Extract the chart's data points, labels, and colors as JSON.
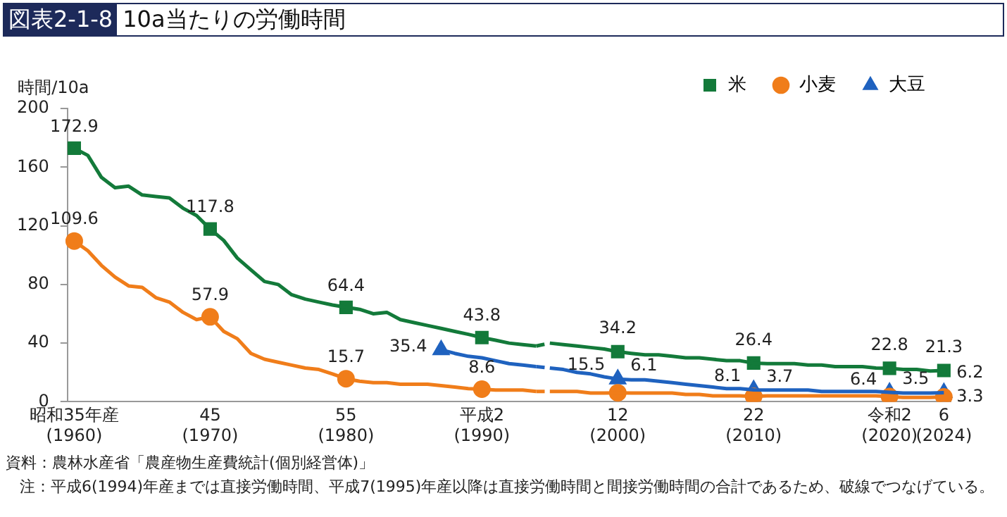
{
  "chart_data": {
    "type": "line",
    "title": "図表2-1-8 10a当たりの労働時間",
    "ylabel": "時間/10a",
    "annotations": [
      "資料：農林水産省「農産物生産費統計(個別経営体)」",
      "注：平成6(1994)年産までは直接労働時間、平成7(1995)年産以降は直接労働時間と間接労働時間の合計であるため、破線でつなげている。"
    ],
    "categories": [
      "昭和35年産\n(1960)",
      null,
      null,
      null,
      null,
      null,
      null,
      null,
      null,
      null,
      "45\n(1970)",
      null,
      null,
      null,
      null,
      null,
      null,
      null,
      null,
      null,
      "55\n(1980)",
      null,
      null,
      null,
      null,
      null,
      null,
      null,
      null,
      null,
      "平成2\n(1990)",
      null,
      null,
      null,
      null,
      null,
      null,
      null,
      null,
      null,
      "12\n(2000)",
      null,
      null,
      null,
      null,
      null,
      null,
      null,
      null,
      null,
      "22\n(2010)",
      null,
      null,
      null,
      null,
      null,
      null,
      null,
      null,
      null,
      "令和2\n(2020)",
      null,
      null,
      null,
      "6\n(2024)"
    ],
    "ylim": [
      0,
      200
    ],
    "yticks": [
      0,
      40,
      80,
      120,
      160,
      200
    ],
    "grid": false,
    "legend": "top right",
    "line_style": "solid",
    "series": [
      {
        "name": "米",
        "color": "#137a3a",
        "marker": "none",
        "values": [
          172.9,
          168,
          153,
          146,
          147,
          141,
          140,
          139,
          132,
          127,
          117.8,
          110,
          98,
          90,
          82,
          80,
          73,
          70,
          68,
          66,
          64.4,
          63,
          60,
          61,
          56,
          54,
          52,
          50,
          48,
          46,
          43.8,
          42,
          40,
          39,
          38,
          null,
          null,
          null,
          null,
          null,
          null,
          null,
          null,
          null,
          null,
          null,
          null,
          null,
          null,
          null,
          null,
          null,
          null,
          null,
          null,
          null,
          null,
          null,
          null,
          null,
          null,
          null,
          null,
          null,
          null
        ]
      },
      {
        "name": "小麦",
        "color": "#f07d1a",
        "marker": "none",
        "values": [
          109.6,
          103,
          93,
          85,
          79,
          78,
          71,
          68,
          61,
          56,
          57.9,
          48,
          43,
          33,
          29,
          27,
          25,
          23,
          22,
          19,
          15.7,
          14,
          13,
          13,
          12,
          12,
          12,
          11,
          10,
          9,
          8.6,
          8,
          8,
          8,
          7,
          null,
          null,
          null,
          null,
          null,
          null,
          null,
          null,
          null,
          null,
          null,
          null,
          null,
          null,
          null,
          null,
          null,
          null,
          null,
          null,
          null,
          null,
          null,
          null,
          null,
          null,
          null,
          null,
          null,
          null
        ]
      },
      {
        "name": "大豆",
        "color": "#1f62bf",
        "marker": "none",
        "values": [
          null,
          null,
          null,
          null,
          null,
          null,
          null,
          null,
          null,
          null,
          null,
          null,
          null,
          null,
          null,
          null,
          null,
          null,
          null,
          null,
          null,
          null,
          null,
          null,
          null,
          null,
          null,
          35.4,
          33,
          31,
          30,
          28,
          26,
          25,
          24,
          null,
          null,
          null,
          null,
          null,
          null,
          null,
          null,
          null,
          null,
          null,
          null,
          null,
          null,
          null,
          null,
          null,
          null,
          null,
          null,
          null,
          null,
          null,
          null,
          null,
          null,
          null,
          null,
          null,
          null
        ]
      },
      {
        "color": "#137a3a",
        "marker": "none",
        "line_style": "dashed",
        "values": [
          null,
          null,
          null,
          null,
          null,
          null,
          null,
          null,
          null,
          null,
          null,
          null,
          null,
          null,
          null,
          null,
          null,
          null,
          null,
          null,
          null,
          null,
          null,
          null,
          null,
          null,
          null,
          null,
          null,
          null,
          null,
          null,
          null,
          null,
          38,
          40,
          null,
          null,
          null,
          null,
          null,
          null,
          null,
          null,
          null,
          null,
          null,
          null,
          null,
          null,
          null,
          null,
          null,
          null,
          null,
          null,
          null,
          null,
          null,
          null,
          null,
          null,
          null,
          null,
          null
        ]
      },
      {
        "color": "#f07d1a",
        "marker": "none",
        "line_style": "dashed",
        "values": [
          null,
          null,
          null,
          null,
          null,
          null,
          null,
          null,
          null,
          null,
          null,
          null,
          null,
          null,
          null,
          null,
          null,
          null,
          null,
          null,
          null,
          null,
          null,
          null,
          null,
          null,
          null,
          null,
          null,
          null,
          null,
          null,
          null,
          null,
          7,
          7,
          null,
          null,
          null,
          null,
          null,
          null,
          null,
          null,
          null,
          null,
          null,
          null,
          null,
          null,
          null,
          null,
          null,
          null,
          null,
          null,
          null,
          null,
          null,
          null,
          null,
          null,
          null,
          null,
          null
        ]
      },
      {
        "color": "#1f62bf",
        "marker": "none",
        "line_style": "dashed",
        "values": [
          null,
          null,
          null,
          null,
          null,
          null,
          null,
          null,
          null,
          null,
          null,
          null,
          null,
          null,
          null,
          null,
          null,
          null,
          null,
          null,
          null,
          null,
          null,
          null,
          null,
          null,
          null,
          null,
          null,
          null,
          null,
          null,
          null,
          null,
          24,
          23,
          null,
          null,
          null,
          null,
          null,
          null,
          null,
          null,
          null,
          null,
          null,
          null,
          null,
          null,
          null,
          null,
          null,
          null,
          null,
          null,
          null,
          null,
          null,
          null,
          null,
          null,
          null,
          null,
          null
        ]
      },
      {
        "color": "#137a3a",
        "marker": "none",
        "values": [
          null,
          null,
          null,
          null,
          null,
          null,
          null,
          null,
          null,
          null,
          null,
          null,
          null,
          null,
          null,
          null,
          null,
          null,
          null,
          null,
          null,
          null,
          null,
          null,
          null,
          null,
          null,
          null,
          null,
          null,
          null,
          null,
          null,
          null,
          null,
          40,
          39,
          38,
          37,
          36,
          34.2,
          33,
          32,
          32,
          31,
          30,
          30,
          29,
          28,
          28,
          26.4,
          26,
          26,
          26,
          25,
          25,
          24,
          24,
          24,
          23,
          22.8,
          22,
          22,
          21,
          21.3
        ]
      },
      {
        "color": "#f07d1a",
        "marker": "none",
        "values": [
          null,
          null,
          null,
          null,
          null,
          null,
          null,
          null,
          null,
          null,
          null,
          null,
          null,
          null,
          null,
          null,
          null,
          null,
          null,
          null,
          null,
          null,
          null,
          null,
          null,
          null,
          null,
          null,
          null,
          null,
          null,
          null,
          null,
          null,
          null,
          7,
          7,
          7,
          6,
          6,
          6.1,
          6,
          6,
          6,
          6,
          5,
          5,
          4,
          4,
          4,
          3.7,
          4,
          4,
          4,
          4,
          4,
          4,
          4,
          4,
          4,
          3.5,
          3,
          3,
          3,
          3.3
        ]
      },
      {
        "color": "#1f62bf",
        "marker": "none",
        "values": [
          null,
          null,
          null,
          null,
          null,
          null,
          null,
          null,
          null,
          null,
          null,
          null,
          null,
          null,
          null,
          null,
          null,
          null,
          null,
          null,
          null,
          null,
          null,
          null,
          null,
          null,
          null,
          null,
          null,
          null,
          null,
          null,
          null,
          null,
          null,
          23,
          22,
          20,
          19,
          17,
          15.5,
          15,
          15,
          14,
          13,
          12,
          11,
          10,
          9,
          9,
          8.1,
          8,
          8,
          8,
          8,
          7,
          7,
          7,
          7,
          7,
          6.4,
          6,
          6,
          6,
          6.2
        ]
      },
      {
        "type": "scatter",
        "color": "#137a3a",
        "marker": "square",
        "values": [
          172.9,
          null,
          null,
          null,
          null,
          null,
          null,
          null,
          null,
          null,
          117.8,
          null,
          null,
          null,
          null,
          null,
          null,
          null,
          null,
          null,
          64.4,
          null,
          null,
          null,
          null,
          null,
          null,
          null,
          null,
          null,
          43.8,
          null,
          null,
          null,
          null,
          null,
          null,
          null,
          null,
          null,
          34.2,
          null,
          null,
          null,
          null,
          null,
          null,
          null,
          null,
          null,
          26.4,
          null,
          null,
          null,
          null,
          null,
          null,
          null,
          null,
          null,
          22.8,
          null,
          null,
          null,
          21.3
        ],
        "data_labels": true
      },
      {
        "type": "scatter",
        "color": "#f07d1a",
        "marker": "circle",
        "values": [
          109.6,
          null,
          null,
          null,
          null,
          null,
          null,
          null,
          null,
          null,
          57.9,
          null,
          null,
          null,
          null,
          null,
          null,
          null,
          null,
          null,
          15.7,
          null,
          null,
          null,
          null,
          null,
          null,
          null,
          null,
          null,
          8.6,
          null,
          null,
          null,
          null,
          null,
          null,
          null,
          null,
          null,
          6.1,
          null,
          null,
          null,
          null,
          null,
          null,
          null,
          null,
          null,
          3.7,
          null,
          null,
          null,
          null,
          null,
          null,
          null,
          null,
          null,
          3.5,
          null,
          null,
          null,
          3.3
        ],
        "data_labels": true
      },
      {
        "type": "scatter",
        "color": "#1f62bf",
        "marker": "triangle",
        "values": [
          null,
          null,
          null,
          null,
          null,
          null,
          null,
          null,
          null,
          null,
          null,
          null,
          null,
          null,
          null,
          null,
          null,
          null,
          null,
          null,
          null,
          null,
          null,
          null,
          null,
          null,
          null,
          35.4,
          null,
          null,
          null,
          null,
          null,
          null,
          null,
          null,
          null,
          null,
          null,
          null,
          15.5,
          null,
          null,
          null,
          null,
          null,
          null,
          null,
          null,
          null,
          8.1,
          null,
          null,
          null,
          null,
          null,
          null,
          null,
          null,
          null,
          6.4,
          null,
          null,
          null,
          6.2
        ],
        "data_labels": true
      }
    ]
  }
}
